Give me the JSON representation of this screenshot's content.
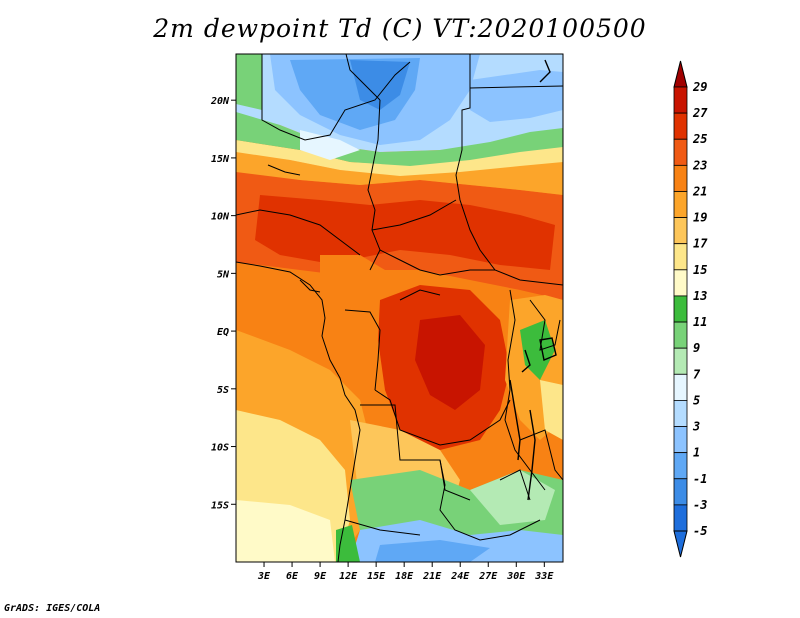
{
  "title": "2m dewpoint Td (C) VT:2020100500",
  "footer": "GrADS: IGES/COLA",
  "map": {
    "lon_range": [
      0,
      35
    ],
    "lat_range": [
      -20,
      24
    ],
    "lon_ticks": [
      {
        "value": 3,
        "label": "3E"
      },
      {
        "value": 6,
        "label": "6E"
      },
      {
        "value": 9,
        "label": "9E"
      },
      {
        "value": 12,
        "label": "12E"
      },
      {
        "value": 15,
        "label": "15E"
      },
      {
        "value": 18,
        "label": "18E"
      },
      {
        "value": 21,
        "label": "21E"
      },
      {
        "value": 24,
        "label": "24E"
      },
      {
        "value": 27,
        "label": "27E"
      },
      {
        "value": 30,
        "label": "30E"
      },
      {
        "value": 33,
        "label": "33E"
      }
    ],
    "lat_ticks": [
      {
        "value": 20,
        "label": "20N"
      },
      {
        "value": 15,
        "label": "15N"
      },
      {
        "value": 10,
        "label": "10N"
      },
      {
        "value": 5,
        "label": "5N"
      },
      {
        "value": 0,
        "label": "EQ"
      },
      {
        "value": -5,
        "label": "5S"
      },
      {
        "value": -10,
        "label": "10S"
      },
      {
        "value": -15,
        "label": "15S"
      }
    ]
  },
  "colorbar": {
    "levels": [
      "29",
      "27",
      "25",
      "23",
      "21",
      "19",
      "17",
      "15",
      "13",
      "11",
      "9",
      "7",
      "5",
      "3",
      "1",
      "-1",
      "-3",
      "-5"
    ],
    "colors": [
      "#a00000",
      "#c81400",
      "#e03200",
      "#f05a14",
      "#f88214",
      "#fca52a",
      "#fdc65a",
      "#fde68a",
      "#fffac8",
      "#3cbc3c",
      "#78d278",
      "#b4eab4",
      "#e6f6ff",
      "#b4dcff",
      "#8cc3ff",
      "#5fa8f5",
      "#3c8ce6",
      "#1e6edc"
    ]
  }
}
